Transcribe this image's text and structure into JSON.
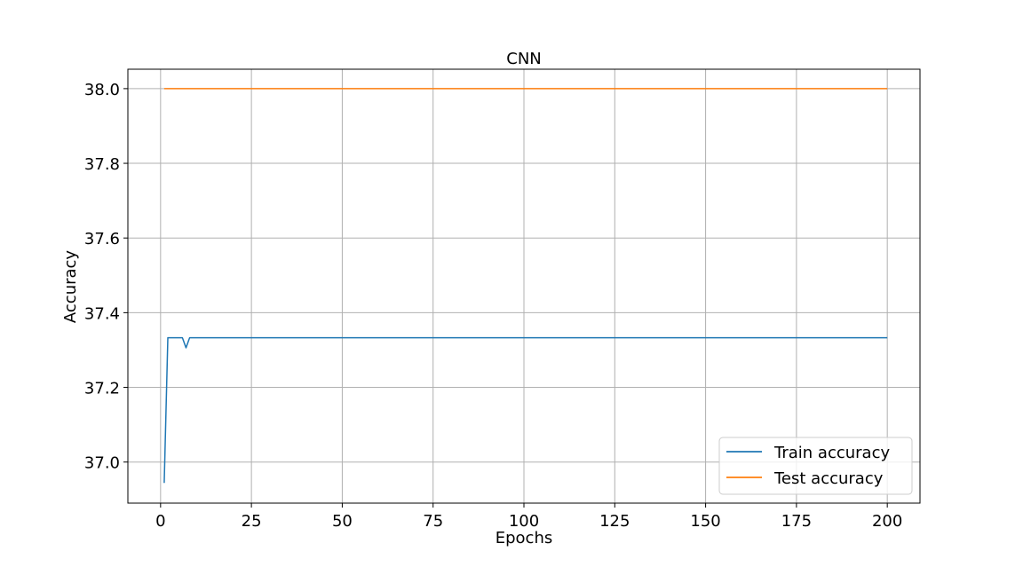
{
  "chart_data": {
    "type": "line",
    "title": "CNN",
    "xlabel": "Epochs",
    "ylabel": "Accuracy",
    "xlim": [
      -9,
      209
    ],
    "ylim": [
      36.89,
      38.052
    ],
    "xticks": [
      0,
      25,
      50,
      75,
      100,
      125,
      150,
      175,
      200
    ],
    "xtick_labels": [
      "0",
      "25",
      "50",
      "75",
      "100",
      "125",
      "150",
      "175",
      "200"
    ],
    "yticks": [
      37.0,
      37.2,
      37.4,
      37.6,
      37.8,
      38.0
    ],
    "ytick_labels": [
      "37.0",
      "37.2",
      "37.4",
      "37.6",
      "37.8",
      "38.0"
    ],
    "grid": true,
    "legend": "lower-right",
    "series": [
      {
        "name": "Train accuracy",
        "color": "#1f77b4",
        "points": [
          [
            1,
            36.944
          ],
          [
            2,
            37.333
          ],
          [
            3,
            37.333
          ],
          [
            4,
            37.333
          ],
          [
            5,
            37.333
          ],
          [
            6,
            37.333
          ],
          [
            7,
            37.306
          ],
          [
            8,
            37.333
          ],
          [
            9,
            37.333
          ],
          [
            10,
            37.333
          ],
          [
            200,
            37.333
          ]
        ]
      },
      {
        "name": "Test accuracy",
        "color": "#ff7f0e",
        "points": [
          [
            1,
            38.0
          ],
          [
            200,
            38.0
          ]
        ]
      }
    ]
  }
}
